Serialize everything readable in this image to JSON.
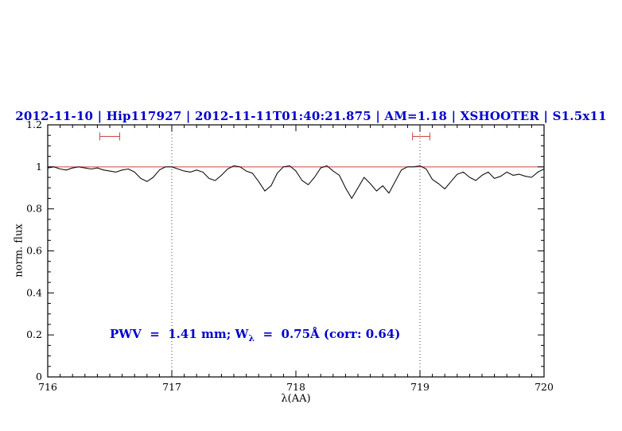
{
  "annotation": {
    "prefix": "PWV  =  1.41 mm; W",
    "subscript": "λ",
    "suffix": "  =  0.75Å (corr: 0.64)"
  },
  "chart_data": {
    "type": "line",
    "title": "2012-11-10 | Hip117927 | 2012-11-11T01:40:21.875 | AM=1.18 | XSHOOTER | S1.5x11",
    "xlabel": "λ(AA)",
    "ylabel": "norm. flux",
    "xlim": [
      716,
      720
    ],
    "ylim": [
      0,
      1.2
    ],
    "xticks": [
      716,
      717,
      718,
      719,
      720
    ],
    "xtick_labels": [
      "716",
      "717",
      "718",
      "719",
      "720"
    ],
    "yticks": [
      0,
      0.2,
      0.4,
      0.6,
      0.8,
      1,
      1.2
    ],
    "ytick_labels": [
      "0",
      "0.2",
      "0.4",
      "0.6",
      "0.8",
      "1",
      "1.2"
    ],
    "x_minor_step": 0.1,
    "y_minor_step": 0.05,
    "grid": false,
    "legend": "none",
    "vlines": [
      717,
      719
    ],
    "hline": {
      "y": 1.0
    },
    "band_markers": [
      {
        "x1": 716.42,
        "x2": 716.58,
        "y": 1.145
      },
      {
        "x1": 718.94,
        "x2": 719.08,
        "y": 1.145
      }
    ],
    "colors": {
      "title": "#0000cc",
      "spectrum": "#111111",
      "reference": "#cc4444",
      "marker": "#cc4444",
      "dotted": "#444444",
      "frame": "#000000"
    },
    "series": [
      {
        "name": "spectrum",
        "points": [
          [
            716.0,
            0.995
          ],
          [
            716.05,
            1.0
          ],
          [
            716.1,
            0.99
          ],
          [
            716.15,
            0.985
          ],
          [
            716.2,
            0.995
          ],
          [
            716.25,
            1.0
          ],
          [
            716.3,
            0.995
          ],
          [
            716.35,
            0.99
          ],
          [
            716.4,
            0.995
          ],
          [
            716.45,
            0.985
          ],
          [
            716.5,
            0.98
          ],
          [
            716.55,
            0.975
          ],
          [
            716.6,
            0.985
          ],
          [
            716.65,
            0.99
          ],
          [
            716.7,
            0.975
          ],
          [
            716.75,
            0.945
          ],
          [
            716.8,
            0.93
          ],
          [
            716.85,
            0.95
          ],
          [
            716.9,
            0.985
          ],
          [
            716.95,
            1.0
          ],
          [
            717.0,
            1.0
          ],
          [
            717.05,
            0.99
          ],
          [
            717.1,
            0.98
          ],
          [
            717.15,
            0.975
          ],
          [
            717.2,
            0.985
          ],
          [
            717.25,
            0.975
          ],
          [
            717.3,
            0.945
          ],
          [
            717.35,
            0.935
          ],
          [
            717.4,
            0.96
          ],
          [
            717.45,
            0.99
          ],
          [
            717.5,
            1.005
          ],
          [
            717.55,
            1.0
          ],
          [
            717.6,
            0.98
          ],
          [
            717.65,
            0.97
          ],
          [
            717.7,
            0.93
          ],
          [
            717.75,
            0.885
          ],
          [
            717.8,
            0.91
          ],
          [
            717.85,
            0.97
          ],
          [
            717.9,
            1.0
          ],
          [
            717.95,
            1.005
          ],
          [
            718.0,
            0.98
          ],
          [
            718.05,
            0.935
          ],
          [
            718.1,
            0.915
          ],
          [
            718.15,
            0.95
          ],
          [
            718.2,
            0.995
          ],
          [
            718.25,
            1.005
          ],
          [
            718.3,
            0.98
          ],
          [
            718.35,
            0.96
          ],
          [
            718.4,
            0.9
          ],
          [
            718.45,
            0.85
          ],
          [
            718.5,
            0.9
          ],
          [
            718.55,
            0.95
          ],
          [
            718.6,
            0.92
          ],
          [
            718.65,
            0.885
          ],
          [
            718.7,
            0.91
          ],
          [
            718.75,
            0.875
          ],
          [
            718.8,
            0.93
          ],
          [
            718.85,
            0.985
          ],
          [
            718.9,
            1.0
          ],
          [
            718.95,
            1.0
          ],
          [
            719.0,
            1.005
          ],
          [
            719.05,
            0.99
          ],
          [
            719.1,
            0.94
          ],
          [
            719.15,
            0.92
          ],
          [
            719.2,
            0.895
          ],
          [
            719.25,
            0.93
          ],
          [
            719.3,
            0.965
          ],
          [
            719.35,
            0.975
          ],
          [
            719.4,
            0.95
          ],
          [
            719.45,
            0.935
          ],
          [
            719.5,
            0.96
          ],
          [
            719.55,
            0.975
          ],
          [
            719.6,
            0.945
          ],
          [
            719.65,
            0.955
          ],
          [
            719.7,
            0.975
          ],
          [
            719.75,
            0.96
          ],
          [
            719.8,
            0.965
          ],
          [
            719.85,
            0.955
          ],
          [
            719.9,
            0.95
          ],
          [
            719.95,
            0.975
          ],
          [
            720.0,
            0.99
          ]
        ]
      }
    ]
  }
}
